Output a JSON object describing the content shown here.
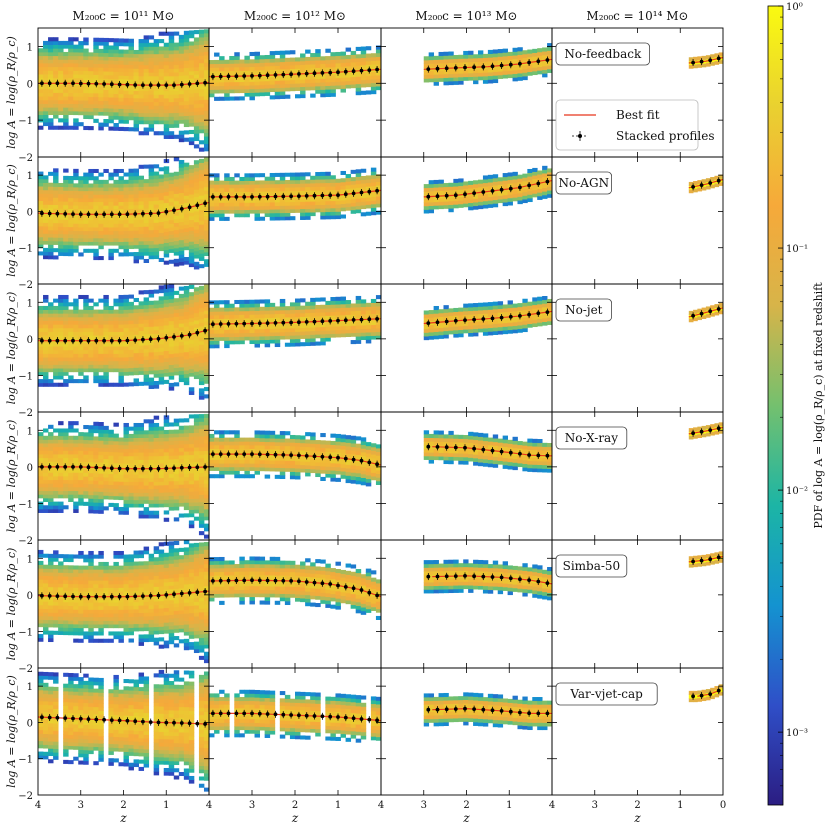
{
  "chart_data": {
    "type": "heatmap",
    "title": "",
    "xlabel": "z",
    "ylabel": "log A = log(ρ_R/ρ_c)",
    "xlim": [
      4,
      0
    ],
    "ylim": [
      -2,
      1.5
    ],
    "xticks": [
      "4",
      "3",
      "2",
      "1"
    ],
    "xticks_last": [
      "4",
      "3",
      "2",
      "1",
      "0"
    ],
    "yticks": [
      "1",
      "0",
      "−1",
      "−2"
    ],
    "columns": [
      {
        "label": "M₂₀₀c = 10¹¹ M⊙",
        "zmax": 4.0
      },
      {
        "label": "M₂₀₀c = 10¹² M⊙",
        "zmax": 4.0
      },
      {
        "label": "M₂₀₀c = 10¹³ M⊙",
        "zmax": 3.0
      },
      {
        "label": "M₂₀₀c = 10¹⁴ M⊙",
        "zmax": 0.8
      }
    ],
    "colorbar": {
      "label": "PDF of log A = log(ρ_R/ρ_c) at fixed redshift",
      "scale": "log",
      "range": [
        0.0005,
        1
      ],
      "tick_labels": [
        "10⁰",
        "10⁻¹",
        "10⁻²",
        "10⁻³"
      ],
      "tick_values": [
        1,
        0.1,
        0.01,
        0.001
      ],
      "colors": [
        "#2b1d82",
        "#2f4fc8",
        "#1493d0",
        "#1cb5a5",
        "#74c06e",
        "#d7b449",
        "#f6a93a",
        "#e9d130",
        "#fafa10"
      ]
    },
    "legend": {
      "best_fit": "Best fit",
      "stacked": "Stacked profiles",
      "best_fit_color": "#e8361c",
      "stacked_color": "#000000"
    },
    "series": [
      {
        "name": "No-feedback",
        "curves": [
          {
            "x": [
              4.0,
              3.2,
              2.4,
              1.6,
              0.8,
              0.0
            ],
            "y": [
              0.0,
              0.0,
              -0.02,
              -0.05,
              -0.05,
              0.02
            ]
          },
          {
            "x": [
              4.0,
              3.0,
              2.0,
              1.0,
              0.0
            ],
            "y": [
              0.18,
              0.2,
              0.25,
              0.3,
              0.38
            ]
          },
          {
            "x": [
              3.0,
              2.2,
              1.5,
              0.8,
              0.0
            ],
            "y": [
              0.38,
              0.42,
              0.45,
              0.52,
              0.65
            ]
          },
          {
            "x": [
              0.8,
              0.4,
              0.0
            ],
            "y": [
              0.55,
              0.6,
              0.7
            ]
          }
        ]
      },
      {
        "name": "No-AGN",
        "curves": [
          {
            "x": [
              4.0,
              3.0,
              2.0,
              1.2,
              0.5,
              0.0
            ],
            "y": [
              -0.05,
              -0.08,
              -0.08,
              -0.05,
              0.1,
              0.25
            ]
          },
          {
            "x": [
              4.0,
              3.0,
              2.0,
              1.0,
              0.0
            ],
            "y": [
              0.4,
              0.4,
              0.42,
              0.45,
              0.58
            ]
          },
          {
            "x": [
              3.0,
              2.2,
              1.5,
              0.8,
              0.0
            ],
            "y": [
              0.4,
              0.45,
              0.55,
              0.65,
              0.85
            ]
          },
          {
            "x": [
              0.8,
              0.4,
              0.0
            ],
            "y": [
              0.65,
              0.75,
              0.88
            ]
          }
        ]
      },
      {
        "name": "No-jet",
        "curves": [
          {
            "x": [
              4.0,
              3.0,
              2.0,
              1.2,
              0.5,
              0.0
            ],
            "y": [
              -0.05,
              -0.05,
              -0.05,
              0.0,
              0.1,
              0.25
            ]
          },
          {
            "x": [
              4.0,
              3.0,
              2.0,
              1.0,
              0.0
            ],
            "y": [
              0.4,
              0.42,
              0.45,
              0.5,
              0.55
            ]
          },
          {
            "x": [
              3.0,
              2.2,
              1.5,
              0.8,
              0.0
            ],
            "y": [
              0.42,
              0.5,
              0.55,
              0.62,
              0.75
            ]
          },
          {
            "x": [
              0.8,
              0.4,
              0.0
            ],
            "y": [
              0.6,
              0.72,
              0.85
            ]
          }
        ]
      },
      {
        "name": "No-X-ray",
        "curves": [
          {
            "x": [
              4.0,
              3.0,
              2.0,
              1.2,
              0.5,
              0.0
            ],
            "y": [
              0.0,
              0.0,
              -0.05,
              -0.05,
              -0.02,
              0.0
            ]
          },
          {
            "x": [
              4.0,
              3.0,
              2.0,
              1.0,
              0.5,
              0.0
            ],
            "y": [
              0.35,
              0.35,
              0.32,
              0.25,
              0.18,
              0.05
            ]
          },
          {
            "x": [
              2.8,
              2.0,
              1.2,
              0.5,
              0.0
            ],
            "y": [
              0.55,
              0.52,
              0.42,
              0.32,
              0.3
            ]
          },
          {
            "x": [
              0.8,
              0.4,
              0.0
            ],
            "y": [
              0.9,
              0.98,
              1.08
            ]
          }
        ]
      },
      {
        "name": "Simba-50",
        "curves": [
          {
            "x": [
              4.0,
              3.0,
              2.0,
              1.2,
              0.5,
              0.0
            ],
            "y": [
              -0.02,
              -0.05,
              -0.05,
              -0.02,
              0.05,
              0.1
            ]
          },
          {
            "x": [
              4.0,
              3.0,
              2.0,
              1.2,
              0.5,
              0.0
            ],
            "y": [
              0.38,
              0.4,
              0.38,
              0.3,
              0.15,
              -0.05
            ]
          },
          {
            "x": [
              2.8,
              2.0,
              1.2,
              0.5,
              0.0
            ],
            "y": [
              0.5,
              0.52,
              0.48,
              0.4,
              0.3
            ]
          },
          {
            "x": [
              0.8,
              0.4,
              0.0
            ],
            "y": [
              0.9,
              0.95,
              1.05
            ]
          }
        ]
      },
      {
        "name": "Var-vjet-cap",
        "curves": [
          {
            "x": [
              4.0,
              3.0,
              2.0,
              1.2,
              0.5,
              0.0
            ],
            "y": [
              0.15,
              0.1,
              0.05,
              0.0,
              -0.02,
              -0.05
            ]
          },
          {
            "x": [
              4.0,
              3.0,
              2.0,
              1.0,
              0.0
            ],
            "y": [
              0.25,
              0.25,
              0.2,
              0.15,
              0.05
            ]
          },
          {
            "x": [
              2.8,
              2.0,
              1.2,
              0.5,
              0.0
            ],
            "y": [
              0.35,
              0.38,
              0.32,
              0.25,
              0.25
            ]
          },
          {
            "x": [
              0.6,
              0.3,
              0.05
            ],
            "y": [
              0.72,
              0.78,
              0.9
            ]
          }
        ]
      }
    ]
  }
}
